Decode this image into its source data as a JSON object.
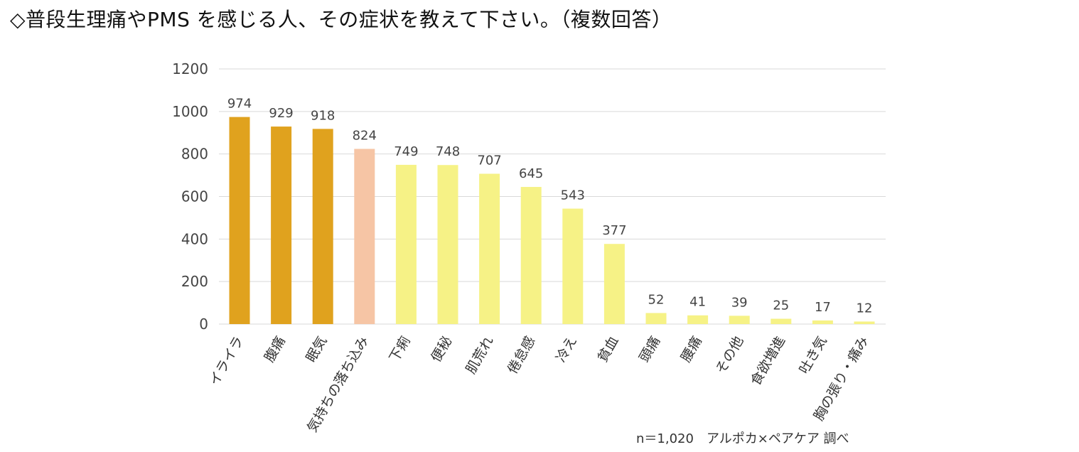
{
  "title": "◇普段生理痛やPMS を感じる人、その症状を教えて下さい。（複数回答）",
  "source_note": "n＝1,020　アルポカ×ペアケア 調べ",
  "colors": {
    "top": "#E0A21E",
    "mood": "#F6C5A5",
    "other": "#F6F286",
    "grid": "#d9d9d9"
  },
  "chart_data": {
    "type": "bar",
    "title": "◇普段生理痛やPMS を感じる人、その症状を教えて下さい。（複数回答）",
    "xlabel": "",
    "ylabel": "",
    "ylim": [
      0,
      1200
    ],
    "yticks": [
      0,
      200,
      400,
      600,
      800,
      1000,
      1200
    ],
    "grid": true,
    "categories": [
      "イライラ",
      "腹痛",
      "眠気",
      "気持ちの落ち込み",
      "下痢",
      "便秘",
      "肌荒れ",
      "倦怠感",
      "冷え",
      "貧血",
      "頭痛",
      "腰痛",
      "その他",
      "食欲増進",
      "吐き気",
      "胸の張り・痛み"
    ],
    "values": [
      974,
      929,
      918,
      824,
      749,
      748,
      707,
      645,
      543,
      377,
      52,
      41,
      39,
      25,
      17,
      12
    ],
    "bar_colors": [
      "top",
      "top",
      "top",
      "mood",
      "other",
      "other",
      "other",
      "other",
      "other",
      "other",
      "other",
      "other",
      "other",
      "other",
      "other",
      "other"
    ]
  }
}
